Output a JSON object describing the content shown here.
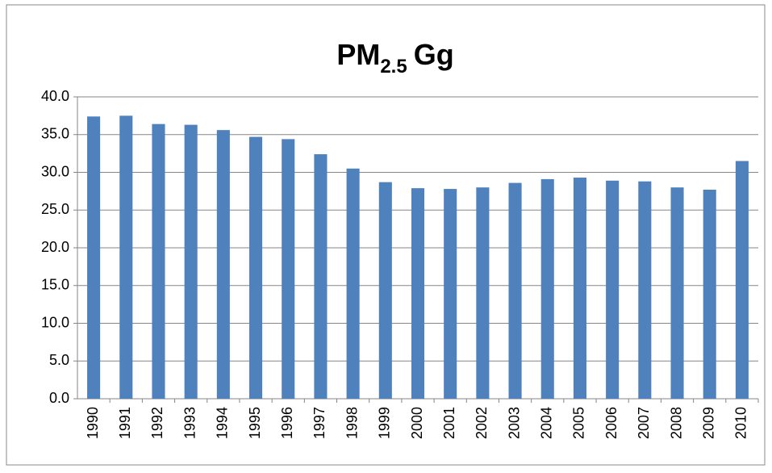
{
  "chart_data": {
    "type": "bar",
    "title": "PM",
    "title_subscript": "2.5",
    "title_suffix": "Gg",
    "categories": [
      "1990",
      "1991",
      "1992",
      "1993",
      "1994",
      "1995",
      "1996",
      "1997",
      "1998",
      "1999",
      "2000",
      "2001",
      "2002",
      "2003",
      "2004",
      "2005",
      "2006",
      "2007",
      "2008",
      "2009",
      "2010"
    ],
    "values": [
      37.4,
      37.5,
      36.4,
      36.3,
      35.6,
      34.7,
      34.4,
      32.4,
      30.5,
      28.7,
      27.9,
      27.8,
      28.0,
      28.6,
      29.1,
      29.3,
      28.9,
      28.8,
      28.0,
      27.7,
      31.5
    ],
    "color": "#4f81bd",
    "ylim": [
      0,
      40
    ],
    "yticks": [
      {
        "value": 0,
        "label": "0.0"
      },
      {
        "value": 5,
        "label": "5.0"
      },
      {
        "value": 10,
        "label": "10.0"
      },
      {
        "value": 15,
        "label": "15.0"
      },
      {
        "value": 20,
        "label": "20.0"
      },
      {
        "value": 25,
        "label": "25.0"
      },
      {
        "value": 30,
        "label": "30.0"
      },
      {
        "value": 35,
        "label": "35.0"
      },
      {
        "value": 40,
        "label": "40.0"
      }
    ],
    "grid": true
  }
}
